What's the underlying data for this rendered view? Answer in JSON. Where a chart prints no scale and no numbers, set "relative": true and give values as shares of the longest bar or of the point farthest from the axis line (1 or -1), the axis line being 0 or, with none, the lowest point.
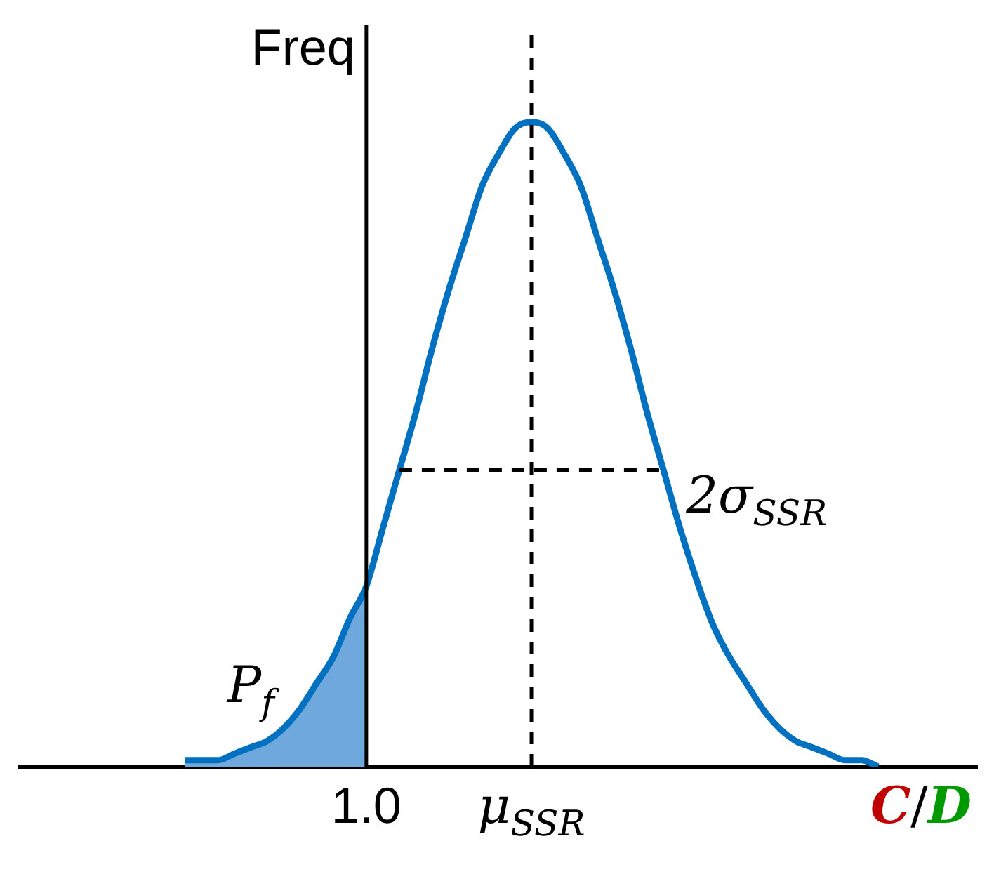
{
  "chart_data": {
    "type": "line",
    "relative": true,
    "ylabel": "Freq",
    "xlabel": "C/D",
    "legend": false,
    "grid": false,
    "marker": "none",
    "categories": [
      null,
      null,
      null,
      null,
      null,
      null,
      null,
      null,
      null,
      null,
      null,
      null,
      null,
      null,
      null,
      null,
      null,
      null,
      null,
      null,
      null,
      "1.0",
      null,
      null,
      null,
      null,
      null,
      null,
      null,
      null,
      null,
      "μ$_{SSR}$",
      null,
      null,
      null,
      null,
      null,
      null,
      null,
      null,
      null,
      null,
      null,
      null,
      null,
      null,
      null,
      null,
      null,
      null,
      null,
      null,
      null,
      null,
      null,
      null,
      null,
      null,
      null
    ],
    "series": [
      {
        "type": "area",
        "color": "#6fa8dc",
        "values": [
          null,
          null,
          null,
          null,
          null,
          null,
          null,
          null,
          null,
          null,
          0.01,
          0.01,
          0.01,
          0.02,
          0.03,
          0.04,
          0.06,
          0.09,
          0.13,
          0.17,
          0.23,
          0.28,
          null,
          null,
          null,
          null,
          null,
          null,
          null,
          null,
          null,
          null,
          null,
          null,
          null,
          null,
          null,
          null,
          null,
          null,
          null,
          null,
          null,
          null,
          null,
          null,
          null,
          null,
          null,
          null,
          null,
          null,
          null,
          null,
          null,
          null,
          null,
          null,
          null
        ]
      },
      {
        "type": "line",
        "color": "#0070c0",
        "line_style": "solid",
        "values": [
          null,
          null,
          null,
          null,
          null,
          null,
          null,
          null,
          null,
          null,
          0.01,
          0.01,
          0.01,
          0.02,
          0.03,
          0.04,
          0.06,
          0.09,
          0.13,
          0.17,
          0.23,
          0.28,
          0.37,
          0.46,
          0.55,
          0.65,
          0.74,
          0.82,
          0.9,
          0.95,
          0.99,
          1,
          0.99,
          0.95,
          0.9,
          0.82,
          0.74,
          0.65,
          0.55,
          0.46,
          0.37,
          0.29,
          0.22,
          0.17,
          0.13,
          0.09,
          0.06,
          0.04,
          0.03,
          0.02,
          0.01,
          0.01,
          0,
          null,
          null,
          null,
          null,
          null,
          null
        ]
      },
      {
        "type": "line",
        "color": "#000000",
        "line_style": "dashed",
        "values": [
          null,
          null,
          null,
          null,
          null,
          null,
          null,
          null,
          null,
          null,
          null,
          null,
          null,
          null,
          null,
          null,
          null,
          null,
          null,
          null,
          null,
          null,
          null,
          0.46,
          null,
          null,
          null,
          null,
          null,
          null,
          null,
          null,
          null,
          null,
          null,
          null,
          null,
          null,
          null,
          0.46,
          null,
          null,
          null,
          null,
          null,
          null,
          null,
          null,
          null,
          null,
          null,
          null,
          null,
          null,
          null,
          null,
          null,
          null,
          null
        ]
      }
    ],
    "ref_lines": [
      {
        "axis": "x",
        "value": "1.0",
        "color": "#000000",
        "line_style": "solid"
      },
      {
        "axis": "x",
        "value": "μ$_{SSR}$",
        "color": "#000000",
        "line_style": "dashed"
      }
    ],
    "annotations": [
      "P$_{f}$",
      "2σ$_{SSR}$"
    ]
  }
}
